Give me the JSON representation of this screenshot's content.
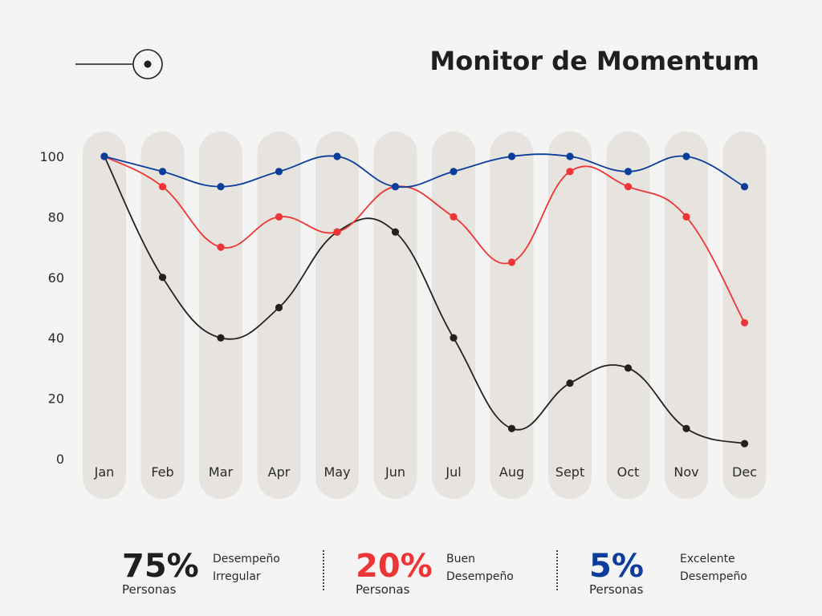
{
  "header": {
    "title": "Monitor de Momentum"
  },
  "chart_data": {
    "type": "line",
    "categories": [
      "Jan",
      "Feb",
      "Mar",
      "Apr",
      "May",
      "Jun",
      "Jul",
      "Aug",
      "Sept",
      "Oct",
      "Nov",
      "Dec"
    ],
    "series": [
      {
        "color": "#0b3d9c",
        "values": [
          100,
          95,
          90,
          95,
          100,
          90,
          95,
          100,
          100,
          95,
          100,
          90
        ]
      },
      {
        "color": "#ee3536",
        "values": [
          100,
          90,
          70,
          80,
          75,
          90,
          80,
          65,
          95,
          90,
          80,
          45
        ]
      },
      {
        "color": "#232021",
        "values": [
          100,
          60,
          40,
          50,
          75,
          75,
          40,
          10,
          25,
          30,
          10,
          5
        ]
      }
    ],
    "yticks": [
      0,
      20,
      40,
      60,
      80,
      100
    ],
    "ylim": [
      0,
      100
    ],
    "grid": false,
    "legend": "none",
    "band_color": "#e7e4df"
  },
  "stats": [
    {
      "value": "75%",
      "unit": "Personas",
      "line1": "Desempeño",
      "line2": "Irregular",
      "color": "#1f1f1f"
    },
    {
      "value": "20%",
      "unit": "Personas",
      "line1": "Buen",
      "line2": "Desempeño",
      "color": "#ee3536"
    },
    {
      "value": "5%",
      "unit": "Personas",
      "line1": "Excelente",
      "line2": "Desempeño",
      "color": "#0b3d9c"
    }
  ]
}
